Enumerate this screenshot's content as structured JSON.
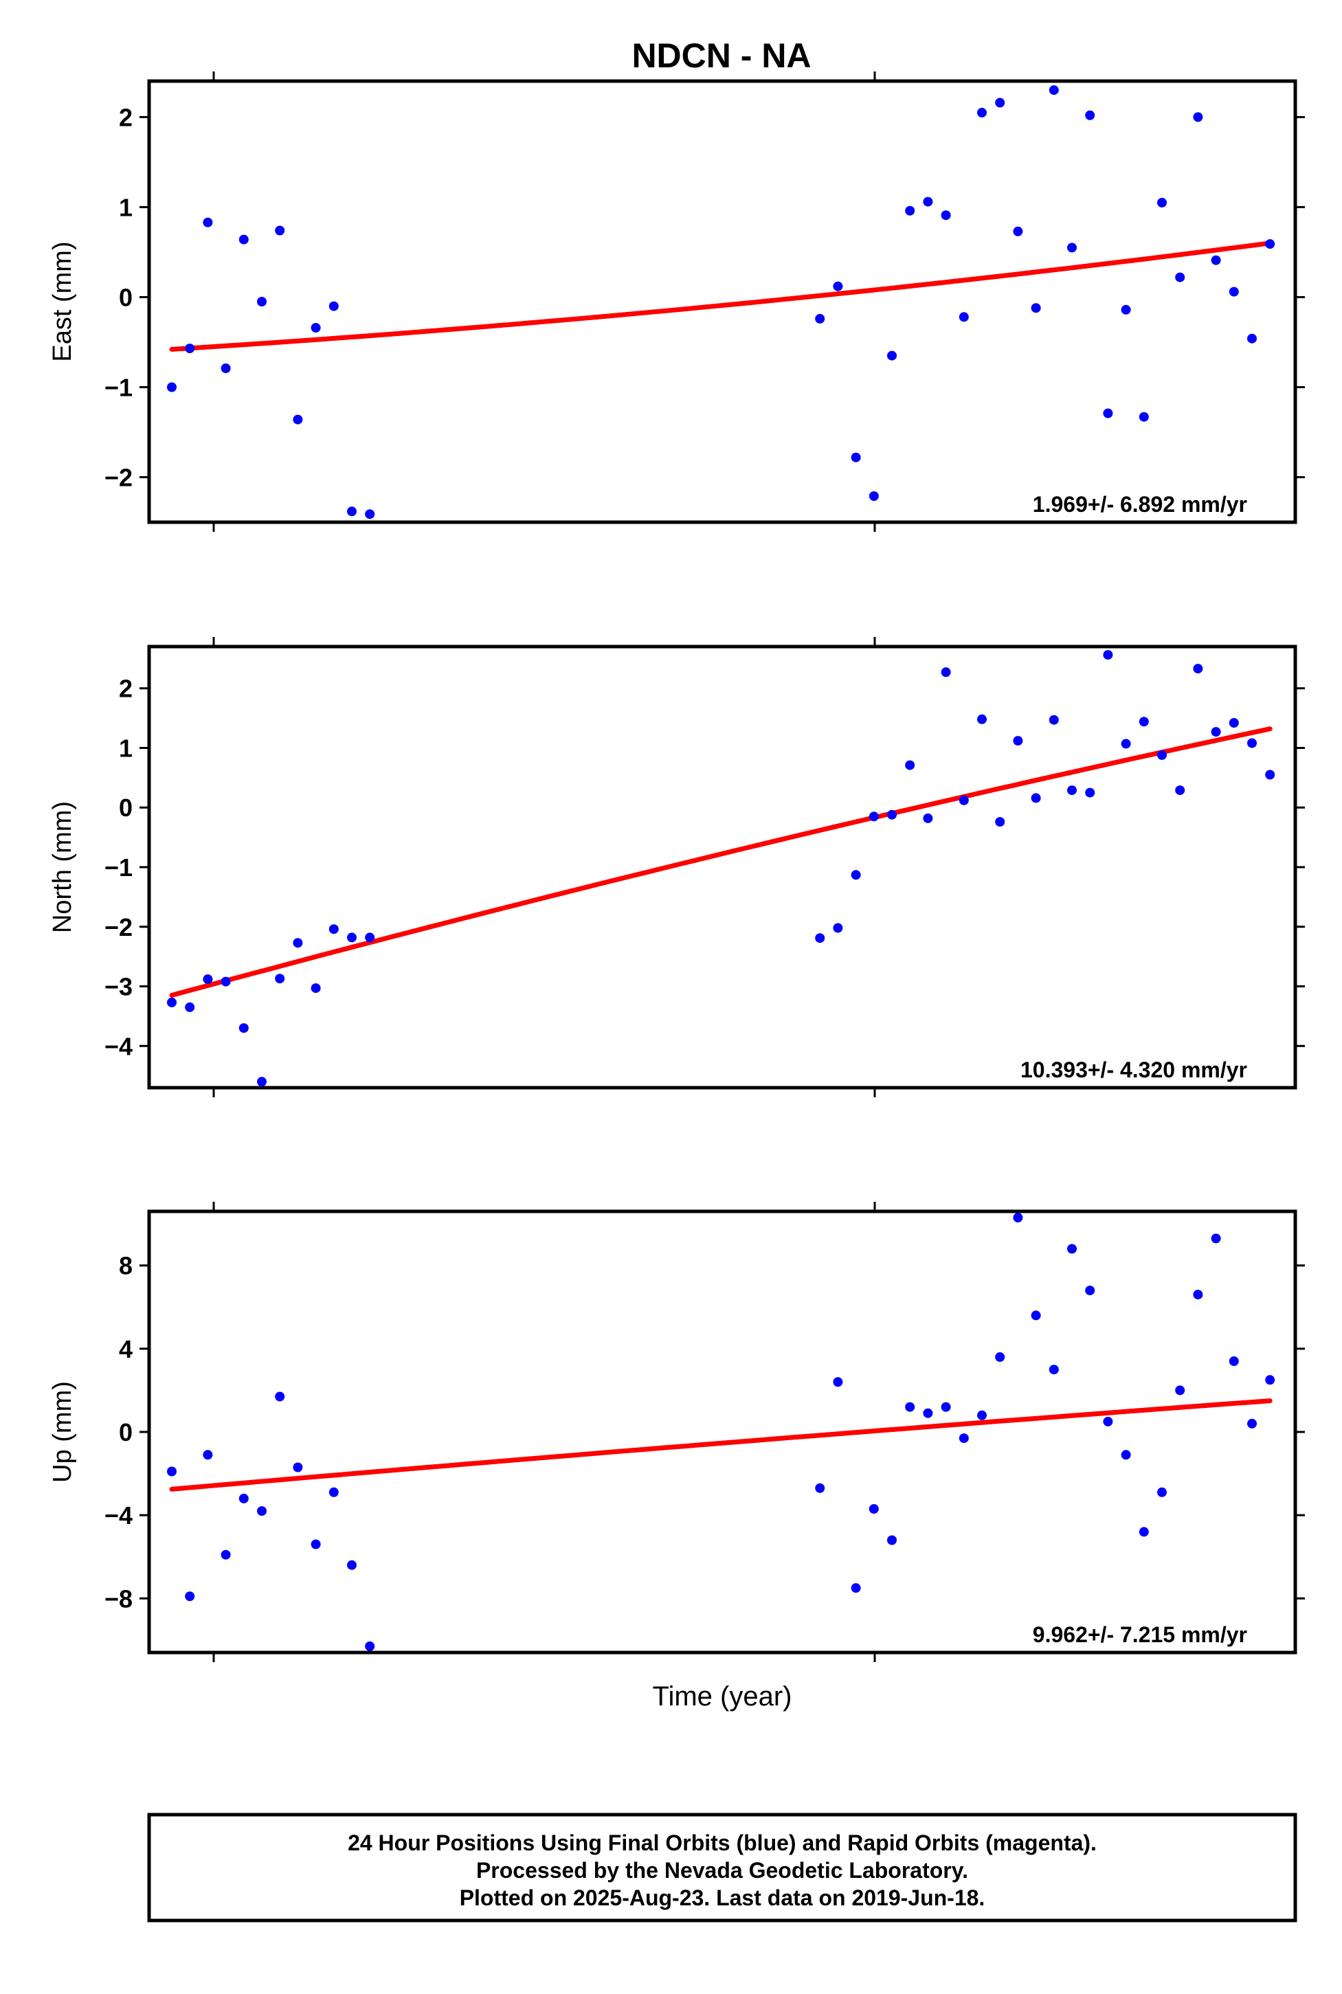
{
  "page": {
    "title": "NDCN - NA",
    "xlabel": "Time (year)"
  },
  "footer": {
    "line1": "24 Hour Positions Using Final Orbits (blue) and Rapid Orbits (magenta).",
    "line2": "Processed by the Nevada Geodetic Laboratory.",
    "line3": "Plotted on 2025-Aug-23. Last data on 2019-Jun-18."
  },
  "colors": {
    "points": "#0000ff",
    "trend": "#ff0000",
    "frame": "#000000"
  },
  "chart_data": [
    {
      "type": "scatter",
      "ylabel": "East (mm)",
      "rate_label": "1.969+/- 6.892 mm/yr",
      "ylim": [
        -2.5,
        2.4
      ],
      "yticks": [
        2,
        1,
        0,
        -1,
        -2
      ],
      "ytick_labels": [
        "2",
        "1",
        "0",
        "−1",
        "−2"
      ],
      "x_index": [
        0,
        1,
        2,
        3,
        4,
        5,
        6,
        7,
        8,
        9,
        10,
        11,
        36,
        37,
        38,
        39,
        40,
        41,
        42,
        43,
        44,
        45,
        46,
        47,
        48,
        49,
        50,
        51,
        52,
        53,
        54,
        55,
        56,
        57,
        58,
        59,
        60,
        61
      ],
      "values": [
        -1.0,
        -0.57,
        0.83,
        -0.79,
        0.64,
        -0.05,
        0.74,
        -1.36,
        -0.34,
        -0.1,
        -2.38,
        -2.41,
        -0.24,
        0.12,
        -1.78,
        -2.21,
        -0.65,
        0.96,
        1.06,
        0.91,
        -0.22,
        2.05,
        2.16,
        0.73,
        -0.12,
        2.3,
        0.55,
        2.02,
        -1.29,
        -0.14,
        -1.33,
        1.05,
        0.22,
        2.0,
        0.41,
        0.06,
        -0.46,
        0.59
      ],
      "trend": {
        "start": -0.58,
        "end": 0.6,
        "curvature": 0.35
      }
    },
    {
      "type": "scatter",
      "ylabel": "North (mm)",
      "rate_label": "10.393+/- 4.320 mm/yr",
      "ylim": [
        -4.7,
        2.7
      ],
      "yticks": [
        2,
        1,
        0,
        -1,
        -2,
        -3,
        -4
      ],
      "ytick_labels": [
        "2",
        "1",
        "0",
        "−1",
        "−2",
        "−3",
        "−4"
      ],
      "x_index": [
        0,
        1,
        2,
        3,
        4,
        5,
        6,
        7,
        8,
        9,
        10,
        11,
        36,
        37,
        38,
        39,
        40,
        41,
        42,
        43,
        44,
        45,
        46,
        47,
        48,
        49,
        50,
        51,
        52,
        53,
        54,
        55,
        56,
        57,
        58,
        59,
        60,
        61
      ],
      "values": [
        -3.27,
        -3.35,
        -2.88,
        -2.92,
        -3.7,
        -4.6,
        -2.87,
        -2.27,
        -3.03,
        -2.04,
        -2.18,
        -2.18,
        -2.19,
        -2.02,
        -1.13,
        -0.15,
        -0.12,
        0.71,
        -0.18,
        2.27,
        0.12,
        1.48,
        -0.24,
        1.12,
        0.16,
        1.47,
        0.29,
        0.25,
        2.56,
        1.07,
        1.44,
        0.88,
        0.29,
        2.33,
        1.27,
        1.42,
        1.08,
        0.55
      ],
      "trend": {
        "start": -3.15,
        "end": 1.32,
        "curvature": -0.12
      }
    },
    {
      "type": "scatter",
      "ylabel": "Up (mm)",
      "rate_label": "9.962+/- 7.215 mm/yr",
      "ylim": [
        -10.6,
        10.6
      ],
      "yticks": [
        8,
        4,
        0,
        -4,
        -8
      ],
      "ytick_labels": [
        "8",
        "4",
        "0",
        "−4",
        "−8"
      ],
      "x_index": [
        0,
        1,
        2,
        3,
        4,
        5,
        6,
        7,
        8,
        9,
        10,
        11,
        36,
        37,
        38,
        39,
        40,
        41,
        42,
        43,
        44,
        45,
        46,
        47,
        48,
        49,
        50,
        51,
        52,
        53,
        54,
        55,
        56,
        57,
        58,
        59,
        60,
        61
      ],
      "values": [
        -1.9,
        -7.9,
        -1.1,
        -5.9,
        -3.2,
        -3.8,
        1.7,
        -1.7,
        -5.4,
        -2.9,
        -6.4,
        -10.3,
        -2.7,
        2.4,
        -7.5,
        -3.7,
        -5.2,
        1.2,
        0.9,
        1.2,
        -0.3,
        0.8,
        3.6,
        10.3,
        5.6,
        3.0,
        8.8,
        6.8,
        0.5,
        -1.1,
        -4.8,
        -2.9,
        2.0,
        6.6,
        9.3,
        3.4,
        0.4,
        2.5
      ],
      "trend": {
        "start": -2.75,
        "end": 1.5,
        "curvature": -0.08
      }
    }
  ]
}
